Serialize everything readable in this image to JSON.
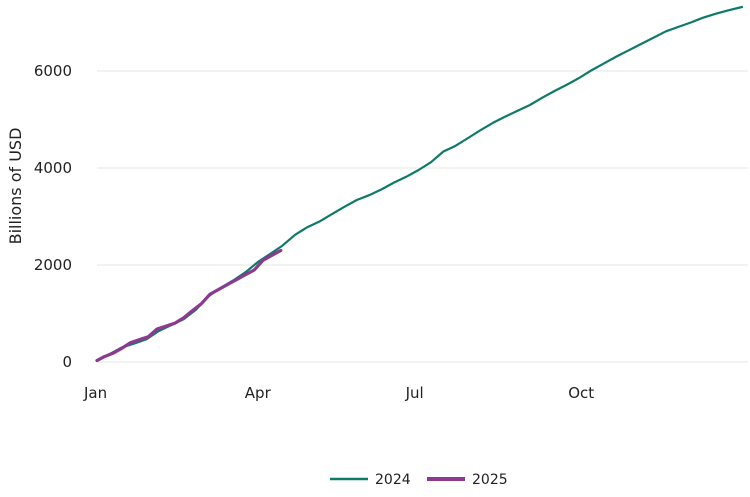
{
  "chart_data": {
    "type": "line",
    "xlabel": "",
    "ylabel": "Billions of USD",
    "x_unit": "day of year",
    "xlim": [
      1,
      366
    ],
    "ylim": [
      0,
      7300
    ],
    "x_ticks": [
      {
        "label": "Jan",
        "day": 1
      },
      {
        "label": "Apr",
        "day": 92
      },
      {
        "label": "Jul",
        "day": 183
      },
      {
        "label": "Oct",
        "day": 275
      }
    ],
    "y_ticks": [
      0,
      2000,
      4000,
      6000
    ],
    "grid": "horizontal",
    "legend_position": "bottom-center",
    "series": [
      {
        "name": "2024",
        "color": "#0f7a68",
        "x": [
          1,
          8,
          15,
          22,
          29,
          36,
          43,
          50,
          57,
          64,
          71,
          78,
          85,
          92,
          99,
          106,
          113,
          120,
          127,
          134,
          141,
          148,
          155,
          162,
          169,
          176,
          183,
          190,
          197,
          204,
          211,
          218,
          225,
          232,
          239,
          246,
          253,
          260,
          267,
          274,
          281,
          288,
          295,
          302,
          309,
          316,
          323,
          330,
          337,
          344,
          351,
          358,
          366
        ],
        "values": [
          20,
          160,
          300,
          380,
          470,
          640,
          760,
          880,
          1080,
          1350,
          1530,
          1680,
          1850,
          2060,
          2230,
          2400,
          2620,
          2780,
          2900,
          3050,
          3200,
          3340,
          3440,
          3560,
          3700,
          3820,
          3960,
          4120,
          4340,
          4460,
          4620,
          4780,
          4930,
          5060,
          5180,
          5300,
          5450,
          5590,
          5720,
          5860,
          6020,
          6160,
          6300,
          6430,
          6560,
          6690,
          6820,
          6910,
          7000,
          7100,
          7180,
          7250,
          7320
        ]
      },
      {
        "name": "2025",
        "color": "#8b3a8f",
        "x": [
          1,
          5,
          10,
          15,
          20,
          25,
          30,
          35,
          40,
          45,
          50,
          55,
          60,
          65,
          70,
          75,
          80,
          85,
          90,
          95,
          100,
          105
        ],
        "values": [
          30,
          110,
          180,
          280,
          400,
          460,
          520,
          680,
          740,
          800,
          910,
          1060,
          1200,
          1400,
          1500,
          1600,
          1700,
          1800,
          1900,
          2100,
          2200,
          2300
        ]
      }
    ]
  }
}
